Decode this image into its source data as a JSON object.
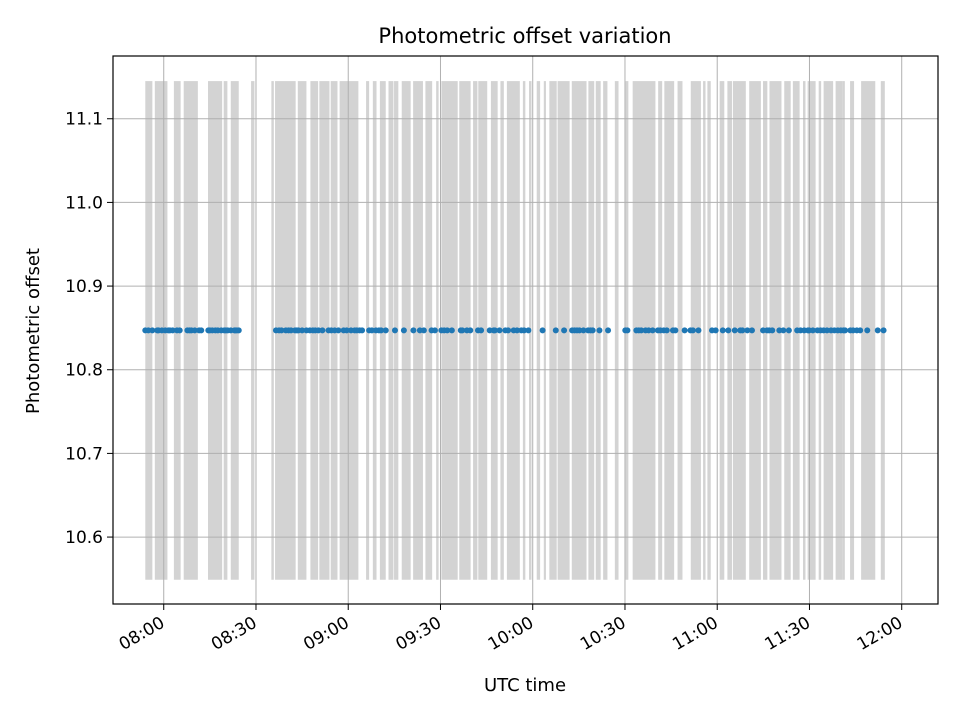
{
  "chart_data": {
    "type": "scatter",
    "title": "Photometric offset variation",
    "xlabel": "UTC time",
    "ylabel": "Photometric offset",
    "y_ticks": [
      "10.6",
      "10.7",
      "10.8",
      "10.9",
      "11.0",
      "11.1"
    ],
    "y_tick_values": [
      10.6,
      10.7,
      10.8,
      10.9,
      11.0,
      11.1
    ],
    "x_ticks": [
      "08:00",
      "08:30",
      "09:00",
      "09:30",
      "10:00",
      "10:30",
      "11:00",
      "11:30",
      "12:00"
    ],
    "x_tick_values_min": [
      480,
      510,
      540,
      570,
      600,
      630,
      660,
      690,
      720
    ],
    "xlim_min": [
      463.5,
      731.8
    ],
    "ylim": [
      10.52,
      11.175
    ],
    "grid": true,
    "series": [
      {
        "color": "#1f77b4",
        "marker": "dot",
        "x_min": [
          474.0,
          475.0,
          476.3,
          477.9,
          478.3,
          479.4,
          480.5,
          481.5,
          482.0,
          482.9,
          484.3,
          485.2,
          487.7,
          488.4,
          489.0,
          490.1,
          491.5,
          492.2,
          494.5,
          495.0,
          495.8,
          496.8,
          497.6,
          498.7,
          499.7,
          500.2,
          500.8,
          501.8,
          503.0,
          503.3,
          503.8,
          504.4,
          516.5,
          517.5,
          518.3,
          519.7,
          520.6,
          521.4,
          522.7,
          523.3,
          523.8,
          525.0,
          526.4,
          527.5,
          528.5,
          529.3,
          530.3,
          531.6,
          533.6,
          534.5,
          535.6,
          536.8,
          538.5,
          539.5,
          540.9,
          542.1,
          542.8,
          543.7,
          544.5,
          546.8,
          547.7,
          549.0,
          550.0,
          550.7,
          552.2,
          555.2,
          558.1,
          561.2,
          563.3,
          564.6,
          567.1,
          568.2,
          570.3,
          571.2,
          572.2,
          573.7,
          576.6,
          577.1,
          578.6,
          579.7,
          582.2,
          583.2,
          586.0,
          587.3,
          587.7,
          589.2,
          591.1,
          592.0,
          593.8,
          594.9,
          596.3,
          597.2,
          598.6,
          603.2,
          607.5,
          610.2,
          612.8,
          613.6,
          614.4,
          615.2,
          616.5,
          618.0,
          618.8,
          619.5,
          621.7,
          624.5,
          630.1,
          630.8,
          633.7,
          634.5,
          635.3,
          636.7,
          637.7,
          639.0,
          640.7,
          641.5,
          642.6,
          643.6,
          645.6,
          646.4,
          649.4,
          651.3,
          652.1,
          653.9,
          658.3,
          659.5,
          661.8,
          663.6,
          665.7,
          667.5,
          668.2,
          669.8,
          671.3,
          674.9,
          676.2,
          676.9,
          677.9,
          680.2,
          681.5,
          683.3,
          686.0,
          687.1,
          688.3,
          689.5,
          689.9,
          691.1,
          692.6,
          693.6,
          694.6,
          695.7,
          697.0,
          698.1,
          699.2,
          700.2,
          701.1,
          701.6,
          703.3,
          704.2,
          705.4,
          706.5,
          708.8,
          712.2,
          714.1
        ],
        "y": 10.847
      }
    ],
    "shaded_spans_min": [
      [
        474.0,
        476.3
      ],
      [
        477.1,
        481.2
      ],
      [
        483.3,
        485.5
      ],
      [
        486.5,
        491.1
      ],
      [
        494.4,
        499.0
      ],
      [
        499.5,
        500.7
      ],
      [
        501.8,
        504.4
      ],
      [
        508.4,
        509.5
      ],
      [
        515.0,
        515.8
      ],
      [
        516.2,
        522.9
      ],
      [
        523.6,
        526.4
      ],
      [
        527.7,
        530.2
      ],
      [
        530.6,
        533.9
      ],
      [
        534.3,
        536.5
      ],
      [
        537.2,
        543.3
      ],
      [
        545.8,
        546.8
      ],
      [
        548.0,
        549.2
      ],
      [
        550.3,
        552.2
      ],
      [
        553.1,
        554.7
      ],
      [
        554.9,
        556.3
      ],
      [
        557.4,
        560.3
      ],
      [
        561.1,
        564.3
      ],
      [
        565.1,
        567.3
      ],
      [
        568.6,
        569.4
      ],
      [
        570.3,
        575.6
      ],
      [
        576.1,
        579.8
      ],
      [
        580.6,
        582.0
      ],
      [
        582.3,
        585.2
      ],
      [
        586.4,
        588.6
      ],
      [
        589.5,
        590.6
      ],
      [
        591.6,
        595.8
      ],
      [
        596.8,
        597.6
      ],
      [
        598.8,
        599.6
      ],
      [
        601.3,
        602.4
      ],
      [
        603.6,
        604.3
      ],
      [
        605.4,
        607.8
      ],
      [
        608.1,
        612.0
      ],
      [
        612.7,
        617.5
      ],
      [
        618.1,
        620.0
      ],
      [
        620.5,
        622.1
      ],
      [
        622.9,
        624.3
      ],
      [
        626.7,
        627.9
      ],
      [
        630.2,
        631.1
      ],
      [
        632.5,
        639.9
      ],
      [
        640.8,
        642.1
      ],
      [
        642.8,
        646.0
      ],
      [
        647.1,
        648.7
      ],
      [
        651.4,
        654.7
      ],
      [
        655.4,
        656.2
      ],
      [
        656.8,
        657.9
      ],
      [
        660.8,
        662.3
      ],
      [
        663.3,
        664.8
      ],
      [
        665.1,
        669.3
      ],
      [
        670.4,
        674.2
      ],
      [
        674.9,
        676.3
      ],
      [
        677.0,
        680.9
      ],
      [
        681.8,
        683.9
      ],
      [
        684.6,
        686.8
      ],
      [
        687.9,
        688.7
      ],
      [
        689.4,
        692.0
      ],
      [
        693.0,
        693.8
      ],
      [
        694.6,
        697.7
      ],
      [
        698.5,
        700.8
      ],
      [
        700.8,
        701.5
      ],
      [
        703.2,
        704.5
      ],
      [
        706.8,
        711.4
      ],
      [
        713.2,
        714.5
      ]
    ]
  }
}
